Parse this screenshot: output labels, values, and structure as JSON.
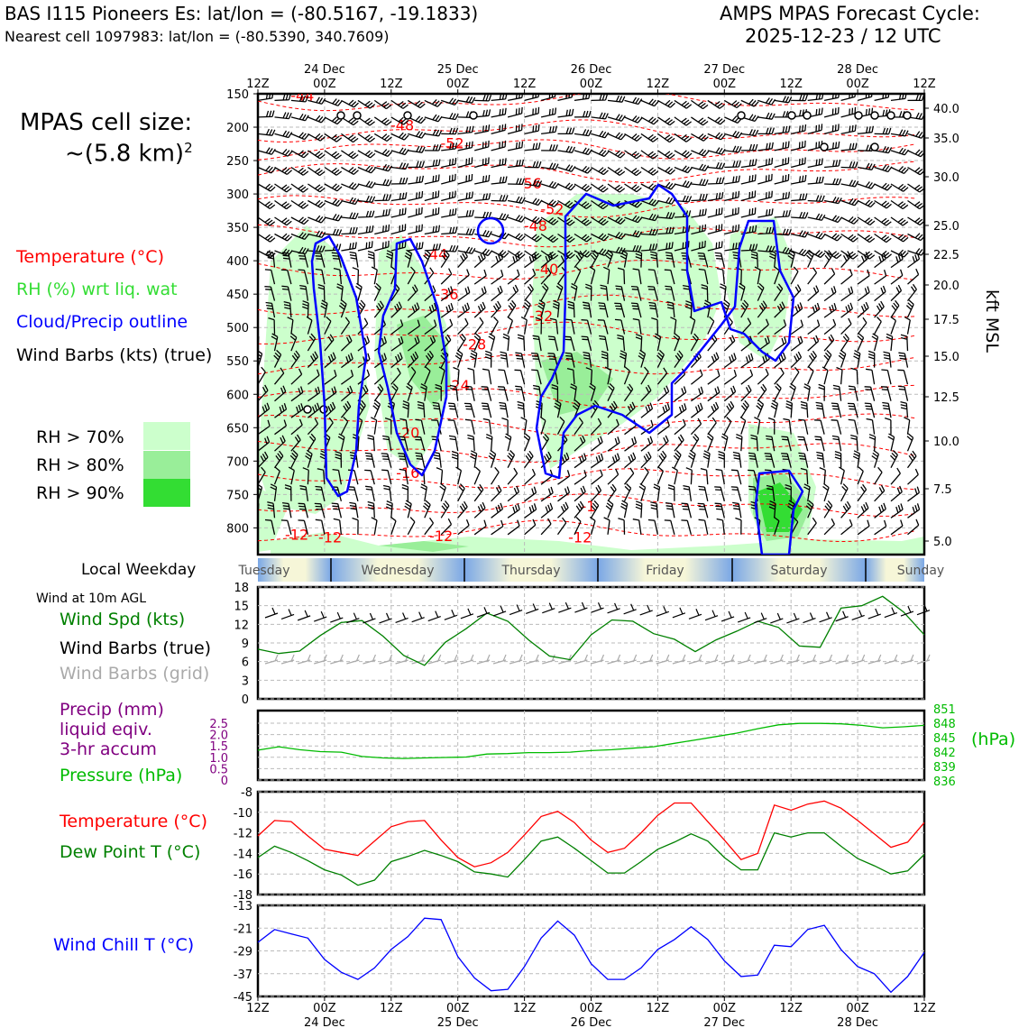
{
  "header": {
    "station": "BAS I115 Pioneers Es: lat/lon = (-80.5167, -19.1833)",
    "nearest": "Nearest cell 1097983: lat/lon = (-80.5390, 340.7609)",
    "cycle_title": "AMPS MPAS Forecast Cycle:",
    "cycle_date": "2025-12-23 / 12 UTC"
  },
  "legend": {
    "cell_size_title": "MPAS cell size:",
    "cell_size_value": "~(5.8 km)",
    "cell_size_exp": "2",
    "temperature": "Temperature (°C)",
    "rh": "RH (%) wrt liq. wat",
    "cloud": "Cloud/Precip outline",
    "wind": "Wind Barbs (kts) (true)",
    "rh70": "RH > 70%",
    "rh80": "RH > 80%",
    "rh90": "RH > 90%"
  },
  "colors": {
    "temperature": "#ff0000",
    "rh_label": "#33dd33",
    "cloud": "#0000ff",
    "rh70": "#ccffcc",
    "rh80": "#99ee99",
    "rh90": "#33dd33",
    "wind_spd": "#008000",
    "dewpoint": "#008000",
    "precip": "#800080",
    "pressure": "#00bb00",
    "windchill": "#0000ff",
    "wind_grid": "#aaaaaa"
  },
  "weekday": {
    "label": "Local Weekday",
    "days": [
      "Tuesday",
      "Wednesday",
      "Thursday",
      "Friday",
      "Saturday",
      "Sunday"
    ]
  },
  "panels_labels": {
    "wind10m": "Wind at 10m AGL",
    "wind_spd": "Wind Spd (kts)",
    "wind_barbs_true": "Wind Barbs (true)",
    "wind_barbs_grid": "Wind Barbs (grid)",
    "precip_line1": "Precip (mm)",
    "precip_line2": "liquid eqiv.",
    "precip_line3": "3-hr accum",
    "pressure": "Pressure (hPa)",
    "pressure_unit": "(hPa)",
    "temp": "Temperature (°C)",
    "dewpoint": "Dew Point T (°C)",
    "windchill": "Wind Chill T (°C)"
  },
  "chart_data": [
    {
      "type": "line",
      "title": "Vertical cross-section (time-height)",
      "x_ticks_top": [
        "12Z",
        "00Z",
        "12Z",
        "00Z",
        "12Z",
        "00Z",
        "12Z",
        "00Z",
        "12Z",
        "00Z",
        "12Z"
      ],
      "date_labels": [
        "24 Dec",
        "25 Dec",
        "26 Dec",
        "27 Dec",
        "28 Dec"
      ],
      "ylabel_right": "kft MSL",
      "pressure_ticks": [
        150,
        200,
        250,
        300,
        350,
        400,
        450,
        500,
        550,
        600,
        650,
        700,
        750,
        800
      ],
      "kft_ticks": [
        "40.0",
        "35.0",
        "30.0",
        "25.0",
        "22.5",
        "20.0",
        "17.5",
        "15.0",
        "12.5",
        "10.0",
        "7.5",
        "5.0"
      ],
      "ylim_hpa": [
        840,
        150
      ],
      "temperature_labels": [
        {
          "text": "-44",
          "hour": 8,
          "p": 160
        },
        {
          "text": "-48",
          "hour": 26,
          "p": 205
        },
        {
          "text": "-52",
          "hour": 35,
          "p": 232
        },
        {
          "text": "-56",
          "hour": 49,
          "p": 292
        },
        {
          "text": "-52",
          "hour": 53,
          "p": 330
        },
        {
          "text": "-48",
          "hour": 50,
          "p": 355
        },
        {
          "text": "-44",
          "hour": 32,
          "p": 398
        },
        {
          "text": "-40",
          "hour": 52,
          "p": 420
        },
        {
          "text": "-36",
          "hour": 34,
          "p": 458
        },
        {
          "text": "-32",
          "hour": 51,
          "p": 490
        },
        {
          "text": "-28",
          "hour": 39,
          "p": 533
        },
        {
          "text": "-24",
          "hour": 36,
          "p": 594
        },
        {
          "text": "-20",
          "hour": 27,
          "p": 665
        },
        {
          "text": "-16",
          "hour": 27,
          "p": 725
        },
        {
          "text": "-12",
          "hour": 7,
          "p": 818
        },
        {
          "text": "-12",
          "hour": 13,
          "p": 822
        },
        {
          "text": "-12",
          "hour": 33,
          "p": 820
        },
        {
          "text": "-12",
          "hour": 58,
          "p": 822
        },
        {
          "text": "-1",
          "hour": 59.5,
          "p": 775
        }
      ]
    },
    {
      "type": "line",
      "title": "Wind at 10m AGL",
      "series": [
        {
          "name": "Wind Spd (kts)",
          "values": [
            8,
            7.3,
            7.7,
            10.2,
            12.3,
            12.6,
            10.1,
            7,
            5.4,
            9.1,
            11.3,
            13.8,
            12.5,
            9.5,
            6.9,
            6.3,
            10.3,
            12.7,
            12.5,
            10.5,
            9.6,
            7.6,
            9.5,
            10.9,
            12.5,
            11.5,
            8.5,
            8.3,
            14.6,
            15,
            16.5,
            14,
            10.3
          ]
        }
      ],
      "ylim": [
        0,
        18
      ],
      "yticks": [
        0,
        3,
        6,
        9,
        12,
        15,
        18
      ]
    },
    {
      "type": "line",
      "title": "Precip / Pressure",
      "series": [
        {
          "name": "Pressure (hPa)",
          "values": [
            842.5,
            843.2,
            842.6,
            842.2,
            842.1,
            841.2,
            840.9,
            840.8,
            840.9,
            841.0,
            841.1,
            841.7,
            841.8,
            842.0,
            842.0,
            842.1,
            842.4,
            842.6,
            842.9,
            843.2,
            843.9,
            844.6,
            845.3,
            846.0,
            846.9,
            847.7,
            848.0,
            848.0,
            847.9,
            847.6,
            847.1,
            847.3,
            847.6
          ]
        }
      ],
      "precip_ticks": [
        "2.5",
        "2.0",
        "1.5",
        "1.0",
        "0.5",
        "0"
      ],
      "pressure_ticks": [
        "851",
        "848",
        "845",
        "842",
        "839",
        "836"
      ],
      "precip_values": []
    },
    {
      "type": "line",
      "title": "Temperature / Dew Point",
      "series": [
        {
          "name": "Temperature (°C)",
          "values": [
            -12.3,
            -10.8,
            -10.9,
            -12.3,
            -13.6,
            -13.9,
            -14.2,
            -12.8,
            -11.4,
            -10.9,
            -10.8,
            -12.7,
            -14.4,
            -15.3,
            -14.9,
            -13.9,
            -12.2,
            -10.4,
            -9.9,
            -11.0,
            -12.7,
            -13.9,
            -13.5,
            -12.0,
            -10.3,
            -9.1,
            -9.1,
            -10.9,
            -12.7,
            -14.6,
            -14.0,
            -9.3,
            -9.8,
            -9.2,
            -8.9,
            -9.6,
            -10.8,
            -12.1,
            -13.4,
            -12.9,
            -11.0
          ]
        },
        {
          "name": "Dew Point T (°C)",
          "values": [
            -14.4,
            -13.3,
            -13.9,
            -14.7,
            -15.6,
            -16.1,
            -17.1,
            -16.6,
            -14.8,
            -14.3,
            -13.7,
            -14.2,
            -14.8,
            -15.8,
            -16.0,
            -16.3,
            -14.6,
            -12.8,
            -12.4,
            -13.5,
            -14.7,
            -15.9,
            -15.9,
            -14.8,
            -13.6,
            -12.9,
            -12.1,
            -12.8,
            -14.4,
            -15.6,
            -15.6,
            -12.0,
            -12.4,
            -12.0,
            -12.0,
            -13.3,
            -14.5,
            -15.2,
            -16.0,
            -15.7,
            -14.1
          ]
        }
      ],
      "ylim": [
        -18,
        -8
      ],
      "yticks": [
        -18,
        -16,
        -14,
        -12,
        -10,
        -8
      ]
    },
    {
      "type": "line",
      "title": "Wind Chill",
      "series": [
        {
          "name": "Wind Chill T (°C)",
          "values": [
            -26,
            -21.5,
            -23,
            -24.5,
            -32,
            -36.5,
            -39,
            -35,
            -28.5,
            -24,
            -17.5,
            -18,
            -31,
            -38.5,
            -43,
            -42.5,
            -34.5,
            -24.5,
            -18.5,
            -23.5,
            -33.5,
            -39,
            -39,
            -35,
            -28.5,
            -25,
            -20.5,
            -25,
            -32.5,
            -38,
            -37.5,
            -27,
            -27.5,
            -21.5,
            -20,
            -28.5,
            -34.5,
            -37,
            -43.5,
            -38,
            -29.5
          ]
        }
      ],
      "ylim": [
        -45,
        -13
      ],
      "yticks": [
        -45,
        -37,
        -29,
        -21,
        -13
      ]
    }
  ]
}
